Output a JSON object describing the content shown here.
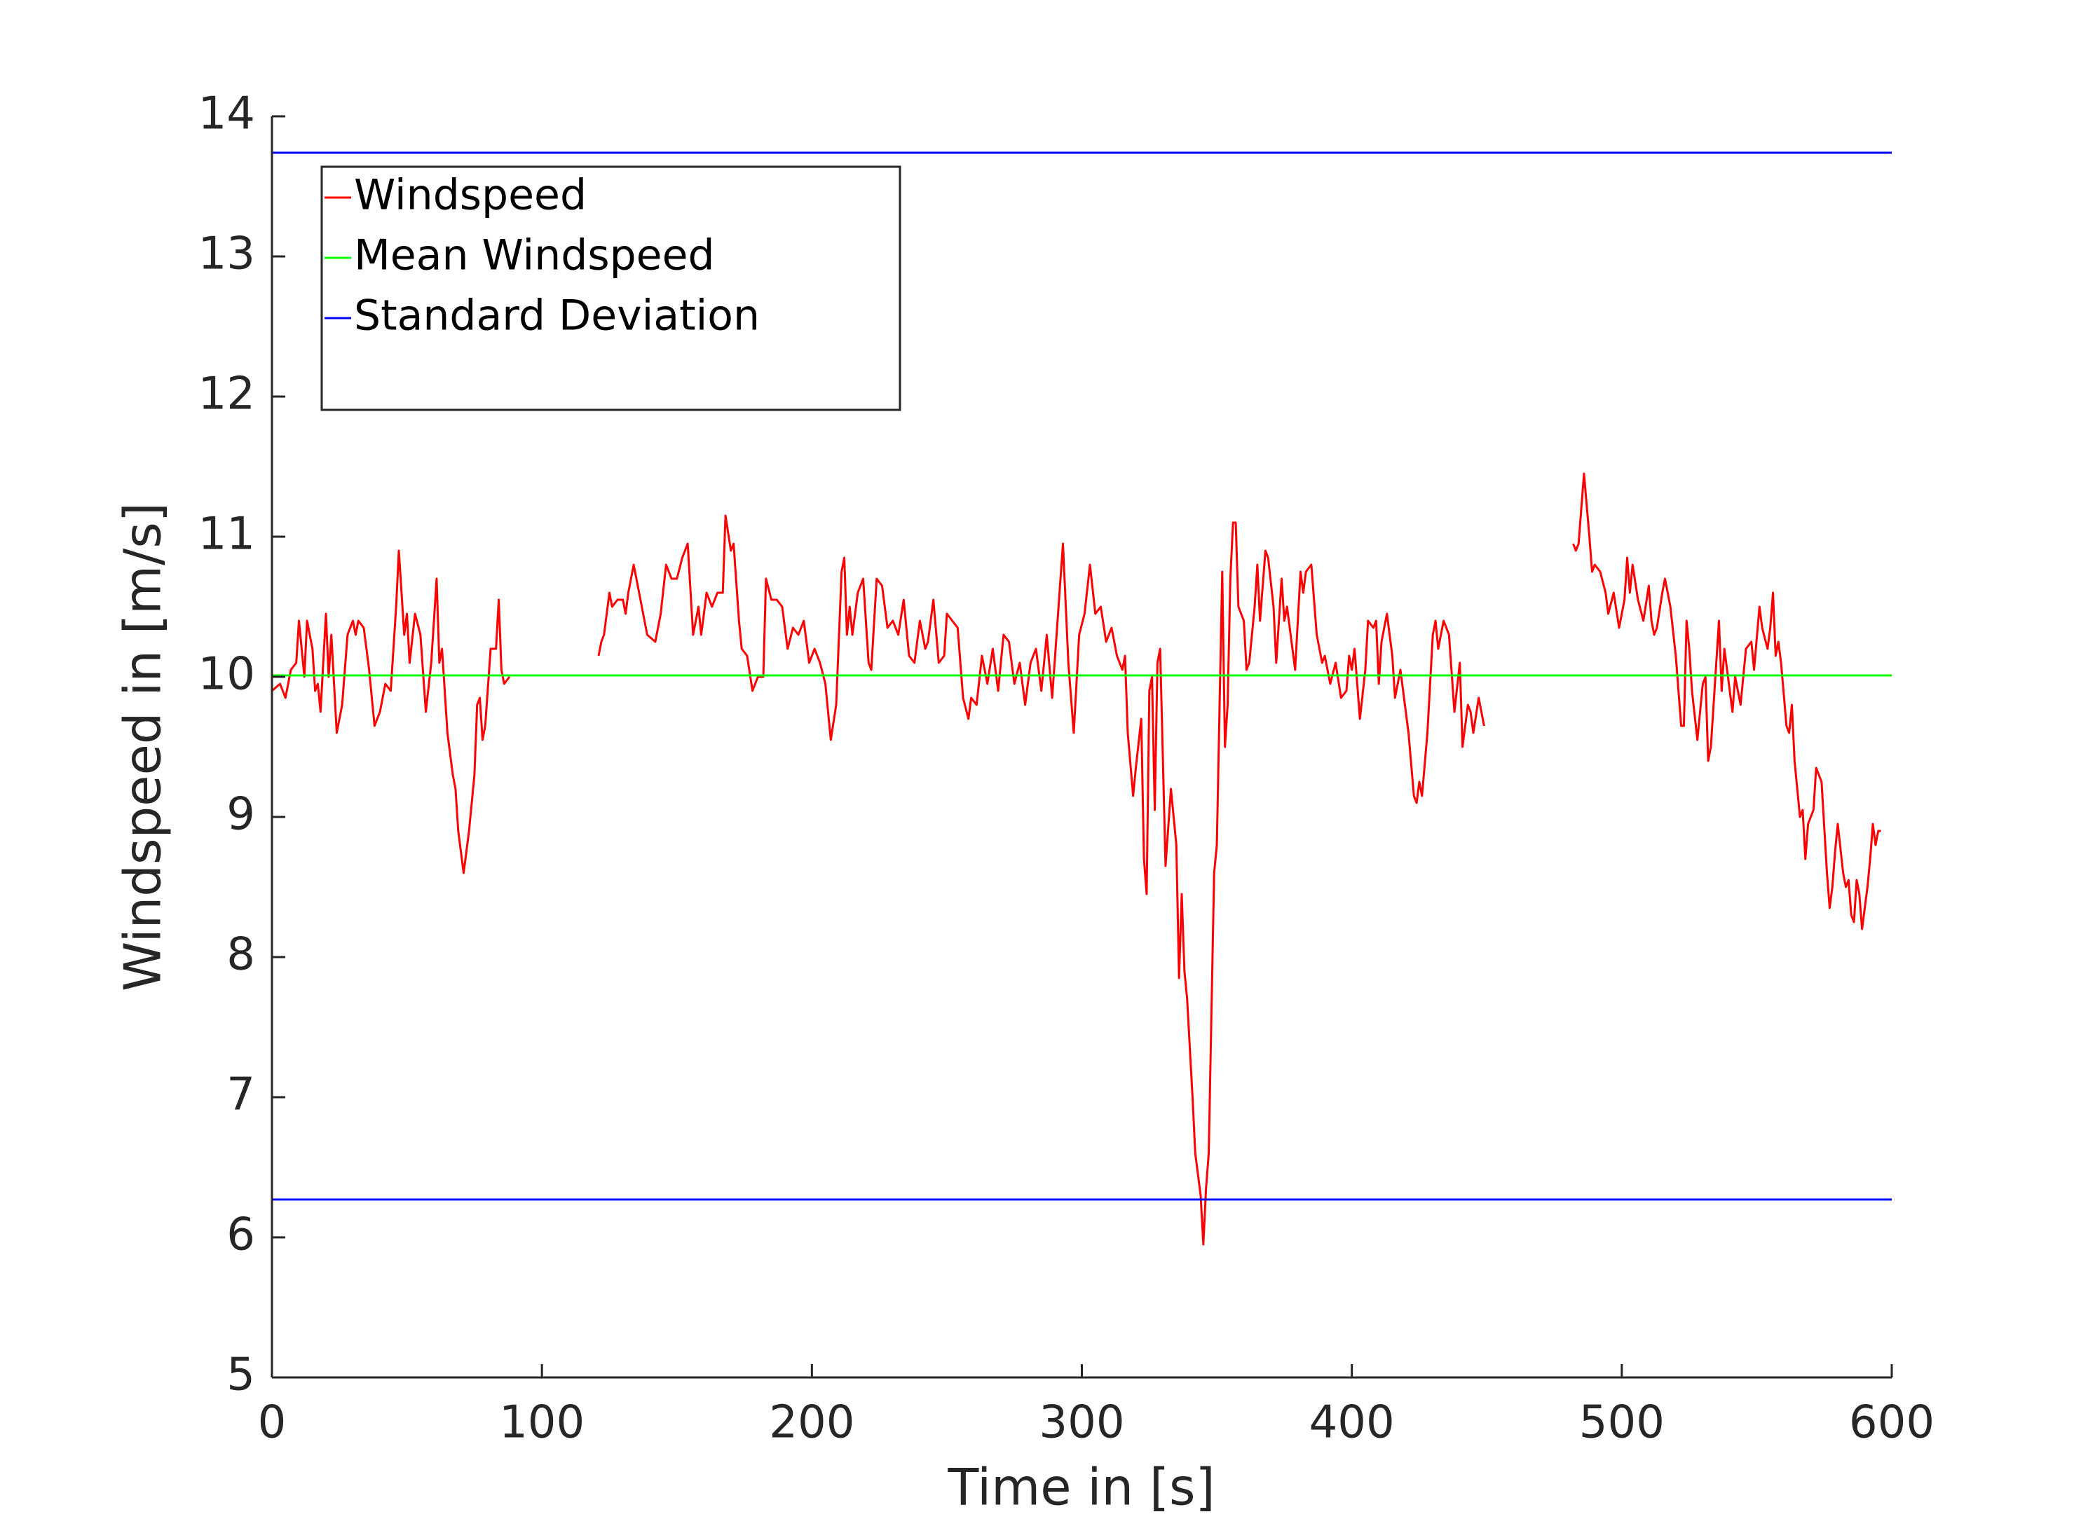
{
  "chart_data": {
    "type": "line",
    "xlabel": "Time in [s]",
    "ylabel": "Windspeed in [m/s]",
    "xlim": [
      0,
      600
    ],
    "ylim": [
      5,
      14
    ],
    "xticks": [
      0,
      100,
      200,
      300,
      400,
      500,
      600
    ],
    "yticks": [
      5,
      6,
      7,
      8,
      9,
      10,
      11,
      12,
      13,
      14
    ],
    "grid": false,
    "legend": "upper left",
    "series": [
      {
        "name": "Windspeed",
        "color": "#ff0000",
        "x": [
          0,
          3,
          5,
          7,
          9,
          10,
          12,
          13,
          15,
          16,
          17,
          18,
          20,
          21,
          22,
          24,
          26,
          28,
          30,
          31,
          32,
          34,
          36,
          38,
          40,
          42,
          44,
          46,
          47,
          49,
          50,
          51,
          53,
          55,
          57,
          59,
          61,
          62,
          63,
          65,
          67,
          68,
          69,
          71,
          73,
          75,
          76,
          77,
          78,
          79,
          81,
          83,
          84,
          85,
          86,
          88,
          104,
          121,
          122,
          123,
          125,
          126,
          128,
          130,
          131,
          132,
          134,
          135,
          137,
          139,
          142,
          144,
          146,
          148,
          150,
          152,
          154,
          156,
          158,
          159,
          161,
          163,
          165,
          167,
          168,
          170,
          171,
          173,
          174,
          176,
          178,
          180,
          182,
          183,
          185,
          187,
          189,
          191,
          193,
          195,
          197,
          199,
          201,
          203,
          205,
          207,
          209,
          211,
          212,
          213,
          214,
          215,
          217,
          219,
          221,
          222,
          224,
          226,
          228,
          230,
          232,
          234,
          236,
          238,
          240,
          242,
          243,
          245,
          247,
          249,
          250,
          252,
          254,
          256,
          258,
          259,
          261,
          263,
          265,
          267,
          269,
          271,
          273,
          275,
          277,
          279,
          281,
          283,
          285,
          287,
          289,
          291,
          293,
          295,
          297,
          299,
          301,
          303,
          305,
          307,
          309,
          311,
          313,
          315,
          316,
          317,
          319,
          320,
          322,
          323,
          324,
          325,
          326,
          327,
          328,
          329,
          331,
          333,
          335,
          336,
          337,
          338,
          339,
          341,
          342,
          344,
          345,
          346,
          347,
          349,
          350,
          352,
          353,
          354,
          355,
          356,
          357,
          358,
          360,
          361,
          362,
          364,
          365,
          366,
          368,
          369,
          371,
          372,
          374,
          375,
          376,
          378,
          379,
          381,
          382,
          383,
          385,
          387,
          389,
          390,
          392,
          394,
          396,
          398,
          399,
          400,
          401,
          403,
          405,
          406,
          408,
          409,
          410,
          411,
          413,
          415,
          416,
          417,
          418,
          419,
          421,
          423,
          424,
          425,
          426,
          428,
          430,
          431,
          432,
          434,
          436,
          438,
          440,
          441,
          443,
          444,
          445,
          447,
          449,
          465,
          482,
          483,
          484,
          486,
          488,
          489,
          490,
          492,
          494,
          495,
          497,
          499,
          501,
          502,
          503,
          504,
          506,
          508,
          510,
          511,
          512,
          513,
          515,
          516,
          518,
          520,
          522,
          523,
          524,
          525,
          526,
          528,
          530,
          531,
          532,
          533,
          534,
          536,
          537,
          538,
          540,
          541,
          542,
          544,
          546,
          548,
          549,
          551,
          552,
          554,
          555,
          556,
          557,
          558,
          559,
          561,
          562,
          563,
          564,
          566,
          567,
          568,
          569,
          571,
          572,
          574,
          576,
          577,
          578,
          579,
          580,
          582,
          583,
          584,
          585,
          586,
          587,
          588,
          589,
          591,
          592,
          593,
          594,
          595,
          596
        ],
        "values": [
          9.9,
          9.95,
          9.85,
          10.05,
          10.1,
          10.4,
          10.0,
          10.4,
          10.2,
          9.9,
          9.95,
          9.75,
          10.45,
          10.0,
          10.3,
          9.6,
          9.8,
          10.3,
          10.4,
          10.3,
          10.4,
          10.35,
          10.05,
          9.65,
          9.75,
          9.95,
          9.9,
          10.5,
          10.9,
          10.3,
          10.45,
          10.1,
          10.45,
          10.3,
          9.75,
          10.1,
          10.7,
          10.1,
          10.2,
          9.6,
          9.3,
          9.2,
          8.9,
          8.6,
          8.9,
          9.3,
          9.8,
          9.85,
          9.55,
          9.65,
          10.2,
          10.2,
          10.55,
          10.05,
          9.95,
          10.0,
          null,
          10.15,
          10.25,
          10.3,
          10.6,
          10.5,
          10.55,
          10.55,
          10.45,
          10.6,
          10.8,
          10.7,
          10.5,
          10.3,
          10.25,
          10.45,
          10.8,
          10.7,
          10.7,
          10.85,
          10.95,
          10.3,
          10.5,
          10.3,
          10.6,
          10.5,
          10.6,
          10.6,
          11.15,
          10.9,
          10.95,
          10.4,
          10.2,
          10.15,
          9.9,
          10.0,
          10.0,
          10.7,
          10.55,
          10.55,
          10.5,
          10.2,
          10.35,
          10.3,
          10.4,
          10.1,
          10.2,
          10.1,
          9.95,
          9.55,
          9.8,
          10.75,
          10.85,
          10.3,
          10.5,
          10.3,
          10.6,
          10.7,
          10.1,
          10.05,
          10.7,
          10.65,
          10.35,
          10.4,
          10.3,
          10.55,
          10.15,
          10.1,
          10.4,
          10.2,
          10.25,
          10.55,
          10.1,
          10.15,
          10.45,
          10.4,
          10.35,
          9.85,
          9.7,
          9.85,
          9.8,
          10.15,
          9.95,
          10.2,
          9.9,
          10.3,
          10.25,
          9.95,
          10.1,
          9.8,
          10.1,
          10.2,
          9.9,
          10.3,
          9.85,
          10.4,
          10.95,
          10.1,
          9.6,
          10.3,
          10.45,
          10.8,
          10.45,
          10.5,
          10.25,
          10.35,
          10.15,
          10.05,
          10.15,
          9.6,
          9.15,
          9.35,
          9.7,
          8.7,
          8.45,
          9.9,
          10.0,
          9.05,
          10.1,
          10.2,
          8.65,
          9.2,
          8.8,
          7.85,
          8.45,
          7.9,
          7.7,
          7.0,
          6.6,
          6.3,
          5.95,
          6.35,
          6.6,
          8.6,
          8.8,
          10.75,
          9.5,
          9.8,
          10.7,
          11.1,
          11.1,
          10.5,
          10.4,
          10.05,
          10.1,
          10.5,
          10.8,
          10.4,
          10.9,
          10.85,
          10.5,
          10.1,
          10.7,
          10.4,
          10.5,
          10.2,
          10.05,
          10.75,
          10.6,
          10.75,
          10.8,
          10.3,
          10.1,
          10.15,
          9.95,
          10.1,
          9.85,
          9.9,
          10.15,
          10.05,
          10.2,
          9.7,
          10.05,
          10.4,
          10.35,
          10.4,
          9.95,
          10.25,
          10.45,
          10.15,
          9.85,
          9.95,
          10.05,
          9.9,
          9.6,
          9.15,
          9.1,
          9.25,
          9.15,
          9.6,
          10.3,
          10.4,
          10.2,
          10.4,
          10.3,
          9.75,
          10.1,
          9.5,
          9.8,
          9.75,
          9.6,
          9.85,
          9.65,
          null,
          10.95,
          10.9,
          10.95,
          11.45,
          11.0,
          10.75,
          10.8,
          10.75,
          10.6,
          10.45,
          10.6,
          10.35,
          10.55,
          10.85,
          10.6,
          10.8,
          10.55,
          10.4,
          10.65,
          10.4,
          10.3,
          10.35,
          10.6,
          10.7,
          10.5,
          10.15,
          9.65,
          9.65,
          10.4,
          10.2,
          9.9,
          9.55,
          9.95,
          10.0,
          9.4,
          9.5,
          9.8,
          10.4,
          9.9,
          10.2,
          9.9,
          9.75,
          10.0,
          9.8,
          10.2,
          10.25,
          10.05,
          10.5,
          10.35,
          10.2,
          10.35,
          10.6,
          10.15,
          10.25,
          10.1,
          9.65,
          9.6,
          9.8,
          9.4,
          9.0,
          9.05,
          8.7,
          8.95,
          9.05,
          9.35,
          9.25,
          8.6,
          8.35,
          8.5,
          8.75,
          8.95,
          8.6,
          8.5,
          8.55,
          8.3,
          8.25,
          8.55,
          8.45,
          8.2,
          8.5,
          8.7,
          8.95,
          8.8,
          8.9,
          8.9
        ]
      },
      {
        "name": "Mean Windspeed",
        "color": "#00ff00",
        "x": [
          0,
          600
        ],
        "values": [
          10.01,
          10.01
        ]
      },
      {
        "name": "Standard Deviation",
        "color": "#0000ff",
        "x": [
          0,
          600,
          0,
          0,
          600
        ],
        "values": [
          13.74,
          13.74,
          null,
          6.27,
          6.27
        ]
      }
    ]
  }
}
